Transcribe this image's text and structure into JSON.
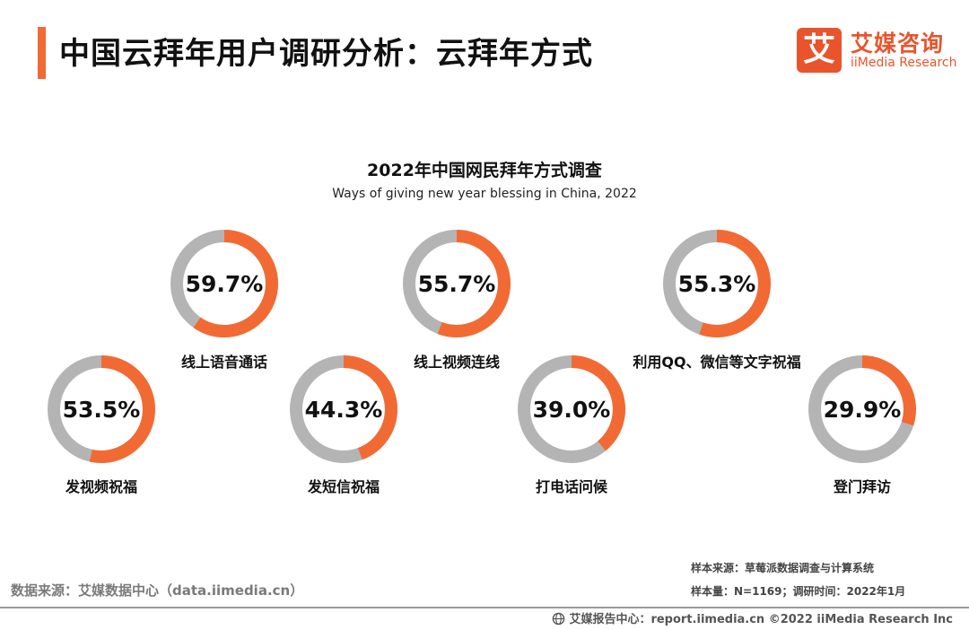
{
  "header": {
    "title": "中国云拜年用户调研分析：云拜年方式"
  },
  "logo": {
    "mark": "艾",
    "name_cn": "艾媒咨询",
    "name_en": "iiMedia Research"
  },
  "chart_data": {
    "type": "pie",
    "title": "2022年中国网民拜年方式调查",
    "subtitle": "Ways of giving new year blessing in China, 2022",
    "unit": "%",
    "categories": [
      "线上语音通话",
      "线上视频连线",
      "利用QQ、微信等文字祝福",
      "发视频祝福",
      "发短信祝福",
      "打电话问候",
      "登门拜访"
    ],
    "values": [
      59.7,
      55.7,
      55.3,
      53.5,
      44.3,
      39.0,
      29.9
    ],
    "value_labels": [
      "59.7%",
      "55.7%",
      "55.3%",
      "53.5%",
      "44.3%",
      "39.0%",
      "29.9%"
    ],
    "colors": {
      "filled": "#f26a33",
      "remainder": "#b4b4b4"
    }
  },
  "notes": {
    "sample_source": "样本来源：草莓派数据调查与计算系统",
    "sample_size": "样本量：N=1169；调研时间：2022年1月"
  },
  "source": "数据来源：艾媒数据中心（data.iimedia.cn）",
  "footer": {
    "text": "艾媒报告中心：report.iimedia.cn   ©2022 iiMedia Research Inc"
  }
}
